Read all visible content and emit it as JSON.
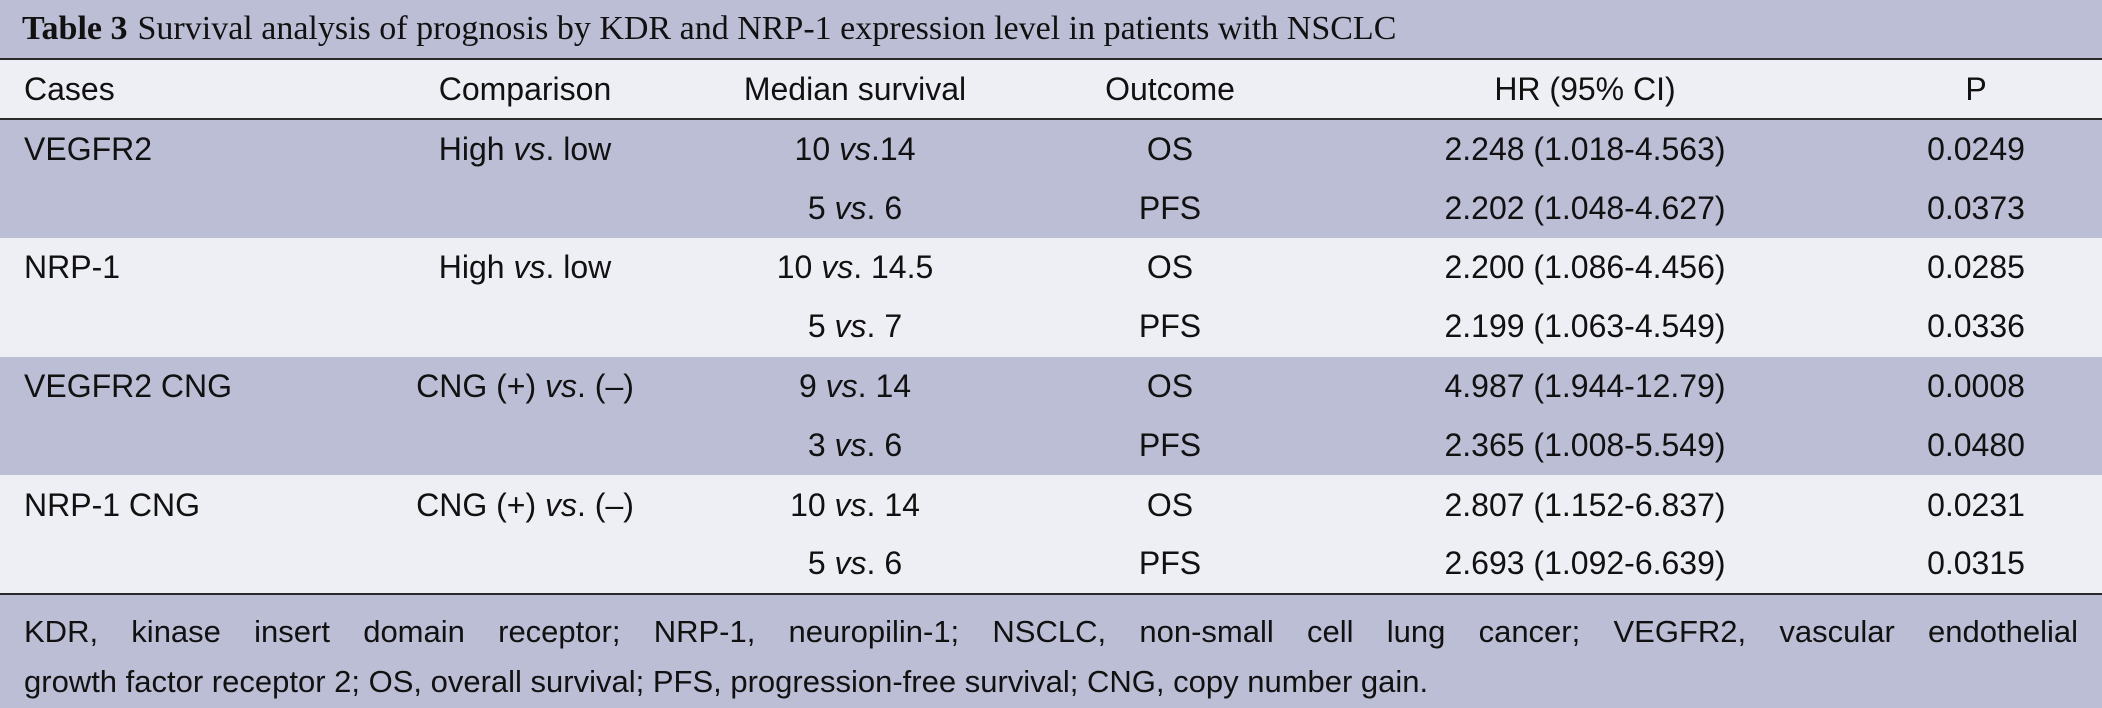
{
  "table": {
    "title_label": "Table 3",
    "title_text": "Survival analysis of prognosis by KDR and NRP-1 expression level in patients with NSCLC",
    "headers": [
      "Cases",
      "Comparison",
      "Median survival",
      "Outcome",
      "HR (95% CI)",
      "P"
    ],
    "rows": [
      {
        "case": "VEGFR2",
        "cmp_pre": "High ",
        "cmp_vs": "vs",
        "cmp_post": ". low",
        "ms_pre": "10 ",
        "ms_vs": "vs",
        "ms_post": ".14",
        "outcome": "OS",
        "hr": "2.248 (1.018-4.563)",
        "p": "0.0249"
      },
      {
        "case": "",
        "cmp_pre": "",
        "cmp_vs": "",
        "cmp_post": "",
        "ms_pre": "5 ",
        "ms_vs": "vs",
        "ms_post": ". 6",
        "outcome": "PFS",
        "hr": "2.202 (1.048-4.627)",
        "p": "0.0373"
      },
      {
        "case": "NRP-1",
        "cmp_pre": "High ",
        "cmp_vs": "vs",
        "cmp_post": ". low",
        "ms_pre": "10 ",
        "ms_vs": "vs",
        "ms_post": ". 14.5",
        "outcome": "OS",
        "hr": "2.200 (1.086-4.456)",
        "p": "0.0285"
      },
      {
        "case": "",
        "cmp_pre": "",
        "cmp_vs": "",
        "cmp_post": "",
        "ms_pre": "5 ",
        "ms_vs": "vs",
        "ms_post": ". 7",
        "outcome": "PFS",
        "hr": "2.199 (1.063-4.549)",
        "p": "0.0336"
      },
      {
        "case": "VEGFR2 CNG",
        "cmp_pre": "CNG (+) ",
        "cmp_vs": "vs",
        "cmp_post": ". (–)",
        "ms_pre": "9 ",
        "ms_vs": "vs",
        "ms_post": ". 14",
        "outcome": "OS",
        "hr": "4.987 (1.944-12.79)",
        "p": "0.0008"
      },
      {
        "case": "",
        "cmp_pre": "",
        "cmp_vs": "",
        "cmp_post": "",
        "ms_pre": "3 ",
        "ms_vs": "vs",
        "ms_post": ". 6",
        "outcome": "PFS",
        "hr": "2.365 (1.008-5.549)",
        "p": "0.0480"
      },
      {
        "case": "NRP-1 CNG",
        "cmp_pre": "CNG (+) ",
        "cmp_vs": "vs",
        "cmp_post": ". (–)",
        "ms_pre": "10 ",
        "ms_vs": "vs",
        "ms_post": ". 14",
        "outcome": "OS",
        "hr": "2.807 (1.152-6.837)",
        "p": "0.0231"
      },
      {
        "case": "",
        "cmp_pre": "",
        "cmp_vs": "",
        "cmp_post": "",
        "ms_pre": "5 ",
        "ms_vs": "vs",
        "ms_post": ". 6",
        "outcome": "PFS",
        "hr": "2.693 (1.092-6.639)",
        "p": "0.0315"
      }
    ],
    "footnote_line1": "KDR, kinase insert domain receptor; NRP-1, neuropilin-1; NSCLC, non-small cell lung cancer; VEGFR2, vascular endothelial",
    "footnote_line2": "growth factor receptor 2; OS, overall survival; PFS, progression-free survival; CNG, copy number gain."
  },
  "colors": {
    "band_dark": "#bcbed6",
    "band_light": "#eeeef5",
    "rule": "#2a2a2a"
  }
}
